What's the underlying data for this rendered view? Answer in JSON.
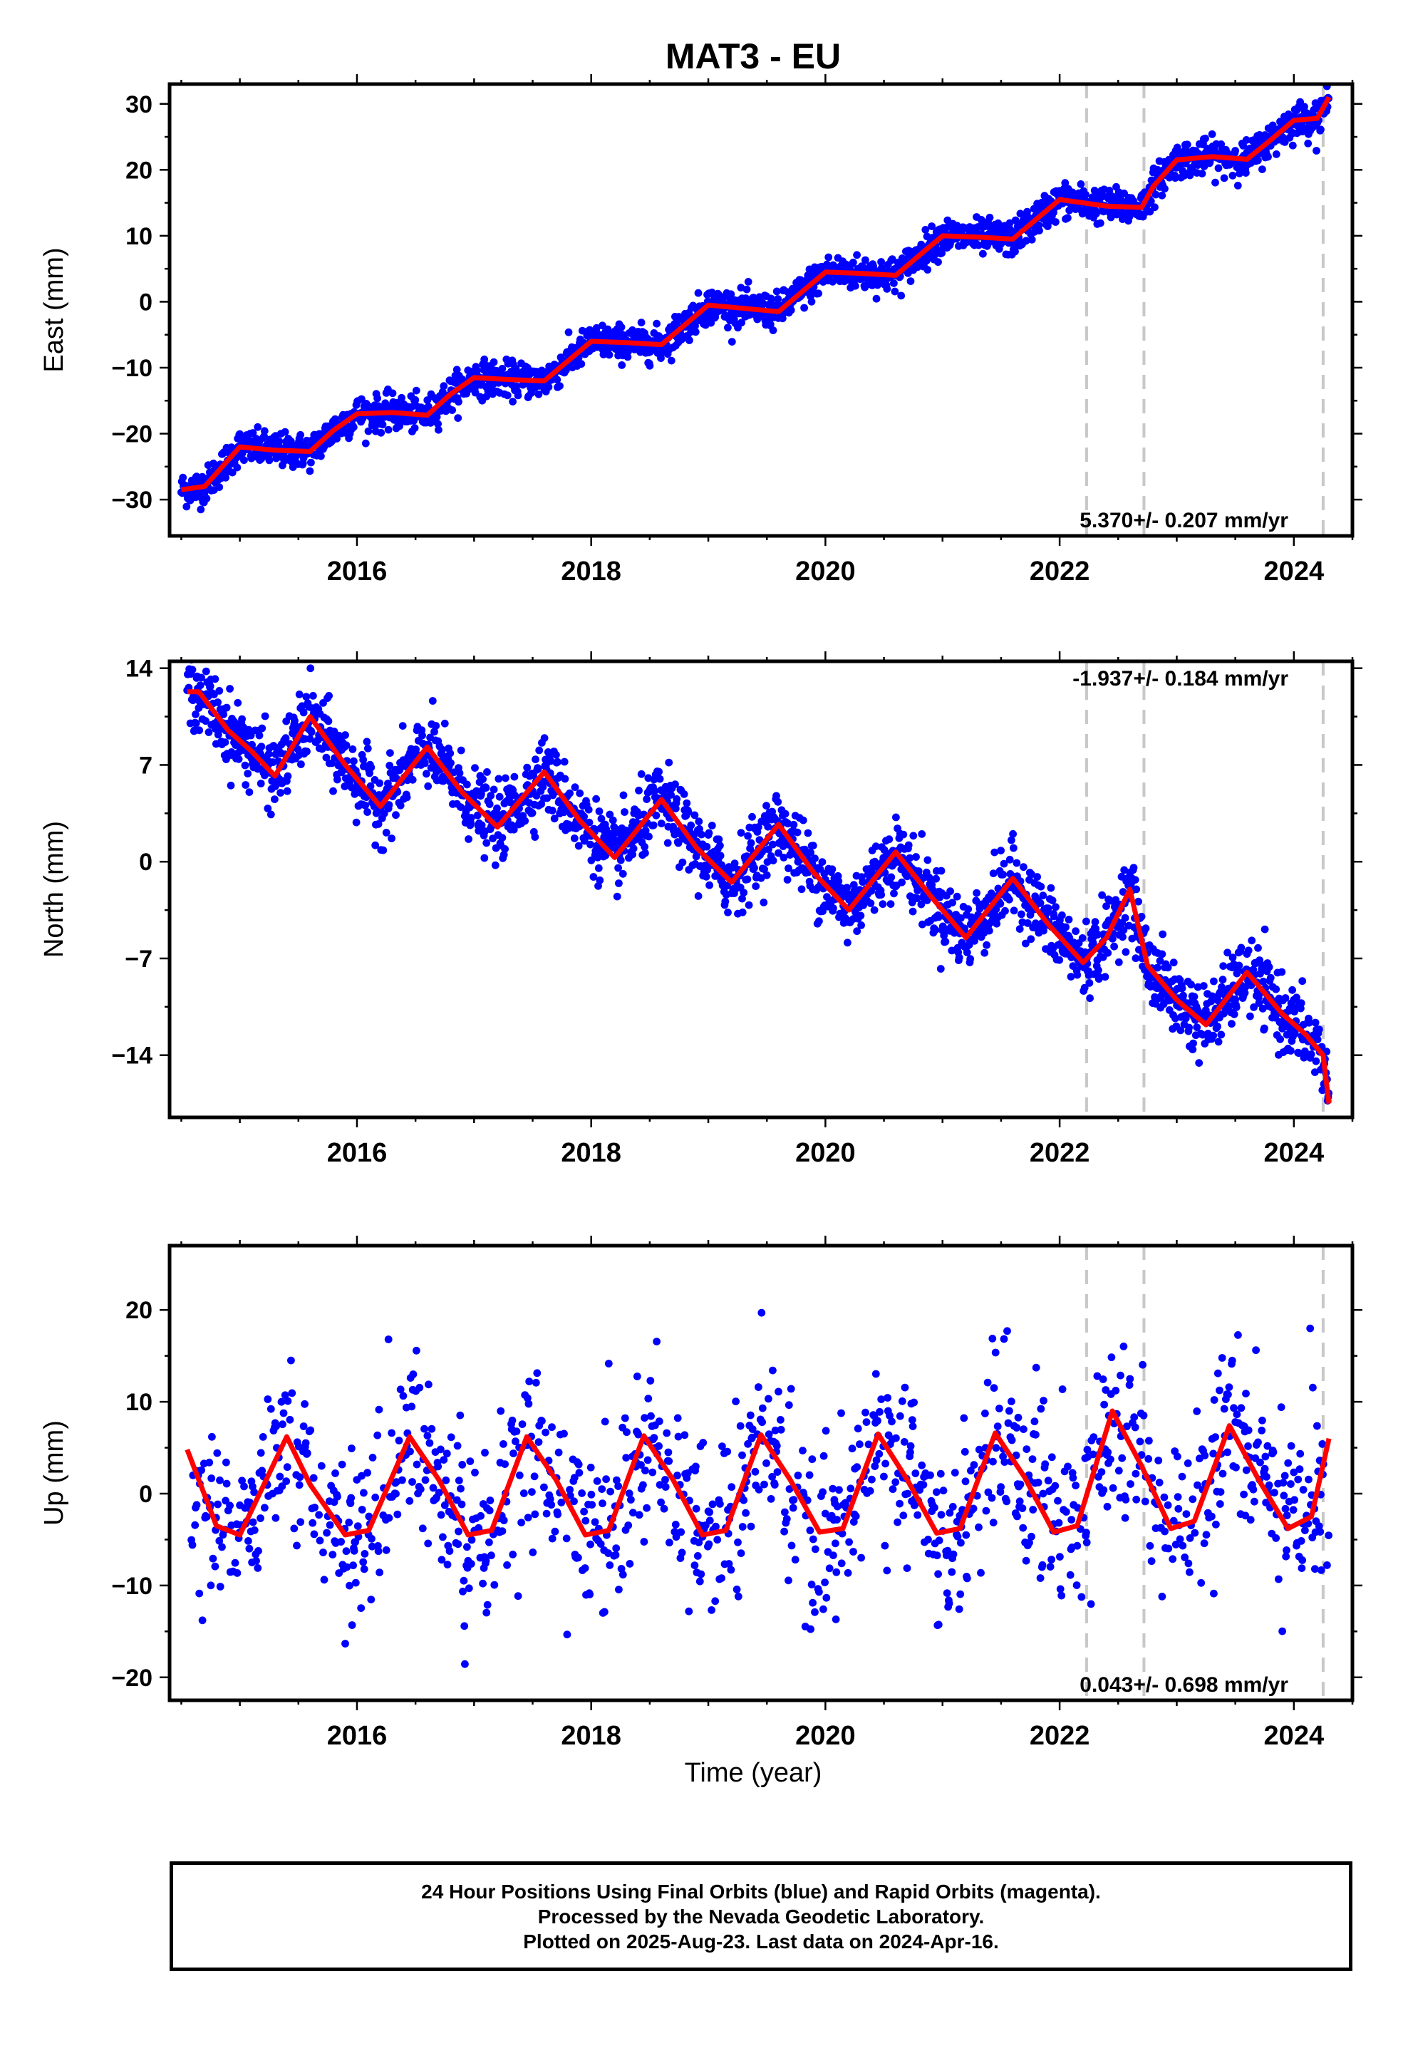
{
  "title": "MAT3 - EU",
  "footer": {
    "line1": "24 Hour Positions Using Final Orbits (blue) and Rapid Orbits (magenta).",
    "line2": "Processed by the Nevada Geodetic Laboratory.",
    "line3": "Plotted on 2025-Aug-23. Last data on 2024-Apr-16."
  },
  "colors": {
    "data": "#0000ff",
    "fit": "#ff0000",
    "event_lines": "#c8c8c8"
  },
  "chart_data": [
    {
      "type": "scatter",
      "ylabel": "East (mm)",
      "xlabel": "",
      "xlim": [
        2014.4,
        2024.5
      ],
      "ylim": [
        -35.5,
        33
      ],
      "x_ticks": [
        2016,
        2018,
        2020,
        2022,
        2024
      ],
      "y_ticks": [
        -30,
        -20,
        -10,
        0,
        10,
        20,
        30
      ],
      "event_lines_x": [
        2022.23,
        2022.72,
        2024.25
      ],
      "rate_label": "5.370+/- 0.207 mm/yr",
      "rate_label_position": "bottom-right",
      "trend_mm_per_yr": 5.37,
      "offset_at_2014_5_mm": -27.5,
      "annual_amplitude_mm": 2.7,
      "noise_mm": 1.3,
      "fit_x": [
        2014.5,
        2014.7,
        2015.0,
        2015.3,
        2015.6,
        2015.8,
        2016.0,
        2016.3,
        2016.6,
        2016.8,
        2017.0,
        2017.3,
        2017.6,
        2017.8,
        2018.0,
        2018.3,
        2018.6,
        2018.8,
        2019.0,
        2019.3,
        2019.6,
        2019.8,
        2020.0,
        2020.3,
        2020.6,
        2020.8,
        2021.0,
        2021.3,
        2021.6,
        2021.8,
        2022.0,
        2022.2,
        2022.4,
        2022.7,
        2022.8,
        2023.0,
        2023.3,
        2023.6,
        2023.8,
        2024.0,
        2024.2,
        2024.3
      ],
      "fit_y": [
        -28.5,
        -28.0,
        -22.0,
        -22.5,
        -22.7,
        -19.5,
        -17.0,
        -16.8,
        -17.2,
        -14.0,
        -11.5,
        -11.8,
        -12.0,
        -9.0,
        -6.0,
        -6.2,
        -6.5,
        -3.5,
        -0.5,
        -1.0,
        -1.5,
        1.5,
        4.5,
        4.3,
        4.0,
        7.0,
        10.0,
        9.8,
        9.5,
        12.5,
        15.5,
        15.0,
        14.5,
        14.3,
        17.5,
        21.5,
        22.0,
        21.6,
        24.5,
        27.5,
        27.8,
        31.0
      ]
    },
    {
      "type": "scatter",
      "ylabel": "North (mm)",
      "xlabel": "",
      "xlim": [
        2014.4,
        2024.5
      ],
      "ylim": [
        -18.5,
        14.5
      ],
      "x_ticks": [
        2016,
        2018,
        2020,
        2022,
        2024
      ],
      "y_ticks": [
        -14,
        -7,
        0,
        7,
        14
      ],
      "y_tick_labels": [
        "−14",
        "−7",
        "0",
        "7",
        "14"
      ],
      "event_lines_x": [
        2022.23,
        2022.72,
        2024.25
      ],
      "rate_label": "-1.937+/- 0.184 mm/yr",
      "rate_label_position": "top-right",
      "trend_mm_per_yr": -1.937,
      "offset_at_2014_5_mm": 10.5,
      "annual_amplitude_mm": 2.3,
      "noise_mm": 1.3,
      "fit_x": [
        2014.55,
        2014.65,
        2014.9,
        2015.1,
        2015.3,
        2015.6,
        2015.9,
        2016.2,
        2016.6,
        2016.9,
        2017.2,
        2017.6,
        2017.9,
        2018.2,
        2018.6,
        2018.9,
        2019.2,
        2019.6,
        2019.9,
        2020.2,
        2020.6,
        2020.9,
        2021.2,
        2021.6,
        2021.9,
        2022.2,
        2022.4,
        2022.6,
        2022.75,
        2023.0,
        2023.25,
        2023.6,
        2023.9,
        2024.1,
        2024.25,
        2024.3
      ],
      "fit_y": [
        12.3,
        12.3,
        9.5,
        8.0,
        6.2,
        10.5,
        7.0,
        4.0,
        8.3,
        5.0,
        2.5,
        6.5,
        3.0,
        0.3,
        4.5,
        1.0,
        -1.5,
        2.7,
        -0.8,
        -3.5,
        0.7,
        -2.5,
        -5.5,
        -1.2,
        -4.5,
        -7.3,
        -5.5,
        -2.0,
        -7.5,
        -10.0,
        -11.8,
        -8.0,
        -11.0,
        -12.5,
        -14.0,
        -17.5
      ]
    },
    {
      "type": "scatter",
      "ylabel": "Up (mm)",
      "xlabel": "Time (year)",
      "xlim": [
        2014.4,
        2024.5
      ],
      "ylim": [
        -22.5,
        27
      ],
      "x_ticks": [
        2016,
        2018,
        2020,
        2022,
        2024
      ],
      "y_ticks": [
        -20,
        -10,
        0,
        10,
        20
      ],
      "event_lines_x": [
        2022.23,
        2022.72,
        2024.25
      ],
      "rate_label": "0.043+/- 0.698 mm/yr",
      "rate_label_position": "bottom-right",
      "trend_mm_per_yr": 0.043,
      "offset_at_2014_5_mm": 0.8,
      "annual_amplitude_mm": 5.5,
      "noise_mm": 4.8,
      "fit_x": [
        2014.55,
        2014.8,
        2015.0,
        2015.4,
        2015.6,
        2015.9,
        2016.1,
        2016.45,
        2016.7,
        2016.95,
        2017.15,
        2017.45,
        2017.7,
        2017.95,
        2018.15,
        2018.45,
        2018.7,
        2018.95,
        2019.15,
        2019.45,
        2019.7,
        2019.95,
        2020.15,
        2020.45,
        2020.7,
        2020.95,
        2021.15,
        2021.45,
        2021.7,
        2021.95,
        2022.15,
        2022.45,
        2022.7,
        2022.95,
        2023.15,
        2023.45,
        2023.7,
        2023.95,
        2024.15,
        2024.3
      ],
      "fit_y": [
        4.8,
        -3.5,
        -4.5,
        6.2,
        1.0,
        -4.5,
        -4.0,
        6.2,
        1.5,
        -4.5,
        -4.0,
        6.2,
        1.5,
        -4.5,
        -4.0,
        6.3,
        1.5,
        -4.5,
        -4.0,
        6.4,
        1.5,
        -4.2,
        -3.8,
        6.5,
        1.5,
        -4.3,
        -3.8,
        6.6,
        1.8,
        -4.2,
        -3.5,
        9.0,
        3.0,
        -3.8,
        -3.0,
        7.4,
        1.5,
        -3.8,
        -2.5,
        6.0
      ]
    }
  ]
}
